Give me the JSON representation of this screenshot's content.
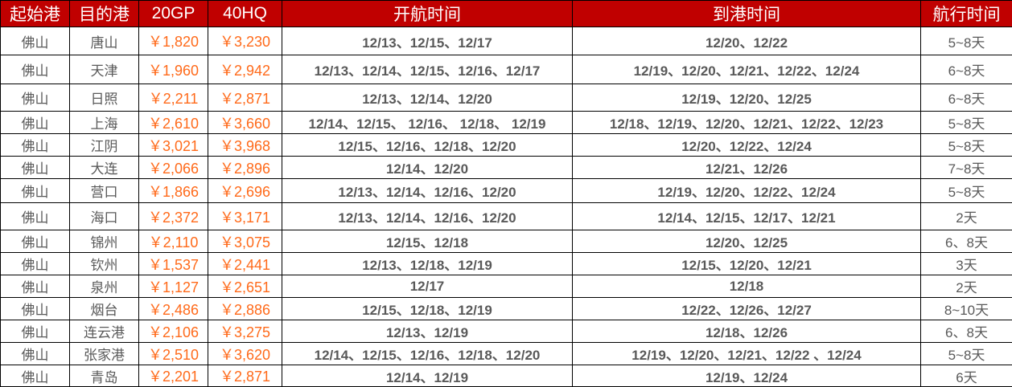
{
  "headers": [
    "起始港",
    "目的港",
    "20GP",
    "40HQ",
    "开航时间",
    "到港时间",
    "航行时间"
  ],
  "rows": [
    {
      "origin": "佛山",
      "dest": "唐山",
      "gp20": "￥1,820",
      "hq40": "￥3,230",
      "depart": "12/13、12/15、12/17",
      "arrive": "12/20、12/22",
      "transit": "5~8天"
    },
    {
      "origin": "佛山",
      "dest": "天津",
      "gp20": "￥1,960",
      "hq40": "￥2,942",
      "depart": "12/13、12/14、12/15、12/16、12/17",
      "arrive": "12/19、12/20、12/21、12/22、12/24",
      "transit": "6~8天"
    },
    {
      "origin": "佛山",
      "dest": "日照",
      "gp20": "￥2,211",
      "hq40": "￥2,871",
      "depart": "12/13、12/14、12/20",
      "arrive": "12/19、12/20、12/25",
      "transit": "6~8天"
    },
    {
      "origin": "佛山",
      "dest": "上海",
      "gp20": "￥2,610",
      "hq40": "￥3,660",
      "depart": "12/14、12/15、 12/16、 12/18、 12/19",
      "arrive": "12/18、12/19、12/20、12/21、12/22、12/23",
      "transit": "5~8天"
    },
    {
      "origin": "佛山",
      "dest": "江阴",
      "gp20": "￥3,021",
      "hq40": "￥3,968",
      "depart": "12/15、12/16、12/18、12/20",
      "arrive": "12/20、12/22、12/24",
      "transit": "5~8天"
    },
    {
      "origin": "佛山",
      "dest": "大连",
      "gp20": "￥2,066",
      "hq40": "￥2,896",
      "depart": "12/14、12/20",
      "arrive": "12/21、12/26",
      "transit": "7~8天"
    },
    {
      "origin": "佛山",
      "dest": "营口",
      "gp20": "￥1,866",
      "hq40": "￥2,696",
      "depart": "12/13、12/14、12/16、12/20",
      "arrive": "12/19、12/20、12/22、12/24",
      "transit": "5~8天"
    },
    {
      "origin": "佛山",
      "dest": "海口",
      "gp20": "￥2,372",
      "hq40": "￥3,171",
      "depart": "12/13、12/14、12/16、12/20",
      "arrive": "12/14、12/15、12/17、12/21",
      "transit": "2天"
    },
    {
      "origin": "佛山",
      "dest": "锦州",
      "gp20": "￥2,110",
      "hq40": "￥3,075",
      "depart": "12/15、12/18",
      "arrive": "12/20、12/25",
      "transit": "6、8天"
    },
    {
      "origin": "佛山",
      "dest": "钦州",
      "gp20": "￥1,537",
      "hq40": "￥2,441",
      "depart": "12/13、12/18、12/19",
      "arrive": "12/15、12/20、12/21",
      "transit": "3天"
    },
    {
      "origin": "佛山",
      "dest": "泉州",
      "gp20": "￥1,127",
      "hq40": "￥2,651",
      "depart": "12/17",
      "arrive": "12/18",
      "transit": "2天"
    },
    {
      "origin": "佛山",
      "dest": "烟台",
      "gp20": "￥2,486",
      "hq40": "￥2,886",
      "depart": "12/15、12/18、12/19",
      "arrive": "12/22、12/26、12/27",
      "transit": "8~10天"
    },
    {
      "origin": "佛山",
      "dest": "连云港",
      "gp20": "￥2,106",
      "hq40": "￥3,275",
      "depart": "12/13、12/19",
      "arrive": "12/18、12/26",
      "transit": "6、8天"
    },
    {
      "origin": "佛山",
      "dest": "张家港",
      "gp20": "￥2,510",
      "hq40": "￥3,620",
      "depart": "12/14、12/15、12/16、12/18、12/20",
      "arrive": "12/19、12/20、12/21、12/22 、12/24",
      "transit": "5~8天"
    },
    {
      "origin": "佛山",
      "dest": "青岛",
      "gp20": "￥2,201",
      "hq40": "￥2,871",
      "depart": "12/14、12/19",
      "arrive": "12/19、12/24",
      "transit": "6天"
    }
  ],
  "colors": {
    "header_bg": "#c00000",
    "price": "#ff6a1a",
    "text": "#595959"
  }
}
